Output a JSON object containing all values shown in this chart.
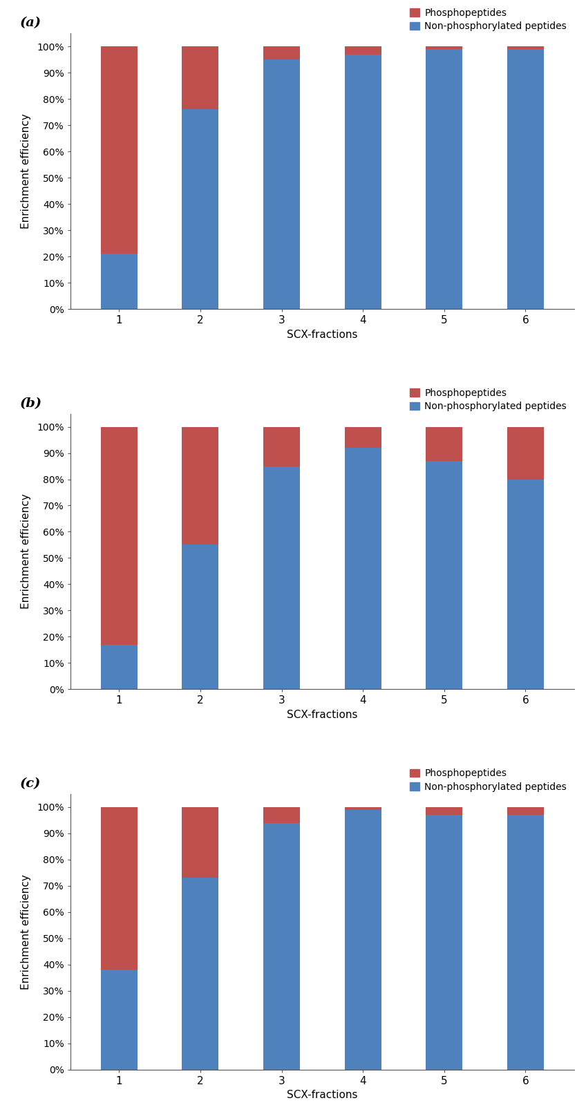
{
  "panels": [
    {
      "label": "(a)",
      "non_phospho": [
        21,
        76,
        95,
        97,
        99,
        99
      ],
      "phospho": [
        79,
        24,
        5,
        3,
        1,
        1
      ]
    },
    {
      "label": "(b)",
      "non_phospho": [
        17,
        55,
        85,
        92,
        87,
        80
      ],
      "phospho": [
        83,
        45,
        15,
        8,
        13,
        20
      ]
    },
    {
      "label": "(c)",
      "non_phospho": [
        38,
        73,
        94,
        99,
        97,
        97
      ],
      "phospho": [
        62,
        27,
        6,
        1,
        3,
        3
      ]
    }
  ],
  "x_labels": [
    "1",
    "2",
    "3",
    "4",
    "5",
    "6"
  ],
  "xlabel": "SCX-fractions",
  "ylabel": "Enrichment efficiency",
  "legend_phospho": "Phosphopeptides",
  "legend_non_phospho": "Non-phosphorylated peptides",
  "color_phospho": "#C0504D",
  "color_non_phospho": "#4F81BD",
  "background_color": "#FFFFFF",
  "bar_width": 0.45,
  "yticks": [
    0,
    10,
    20,
    30,
    40,
    50,
    60,
    70,
    80,
    90,
    100
  ],
  "ytick_labels": [
    "0%",
    "10%",
    "20%",
    "30%",
    "40%",
    "50%",
    "60%",
    "70%",
    "80%",
    "90%",
    "100%"
  ]
}
